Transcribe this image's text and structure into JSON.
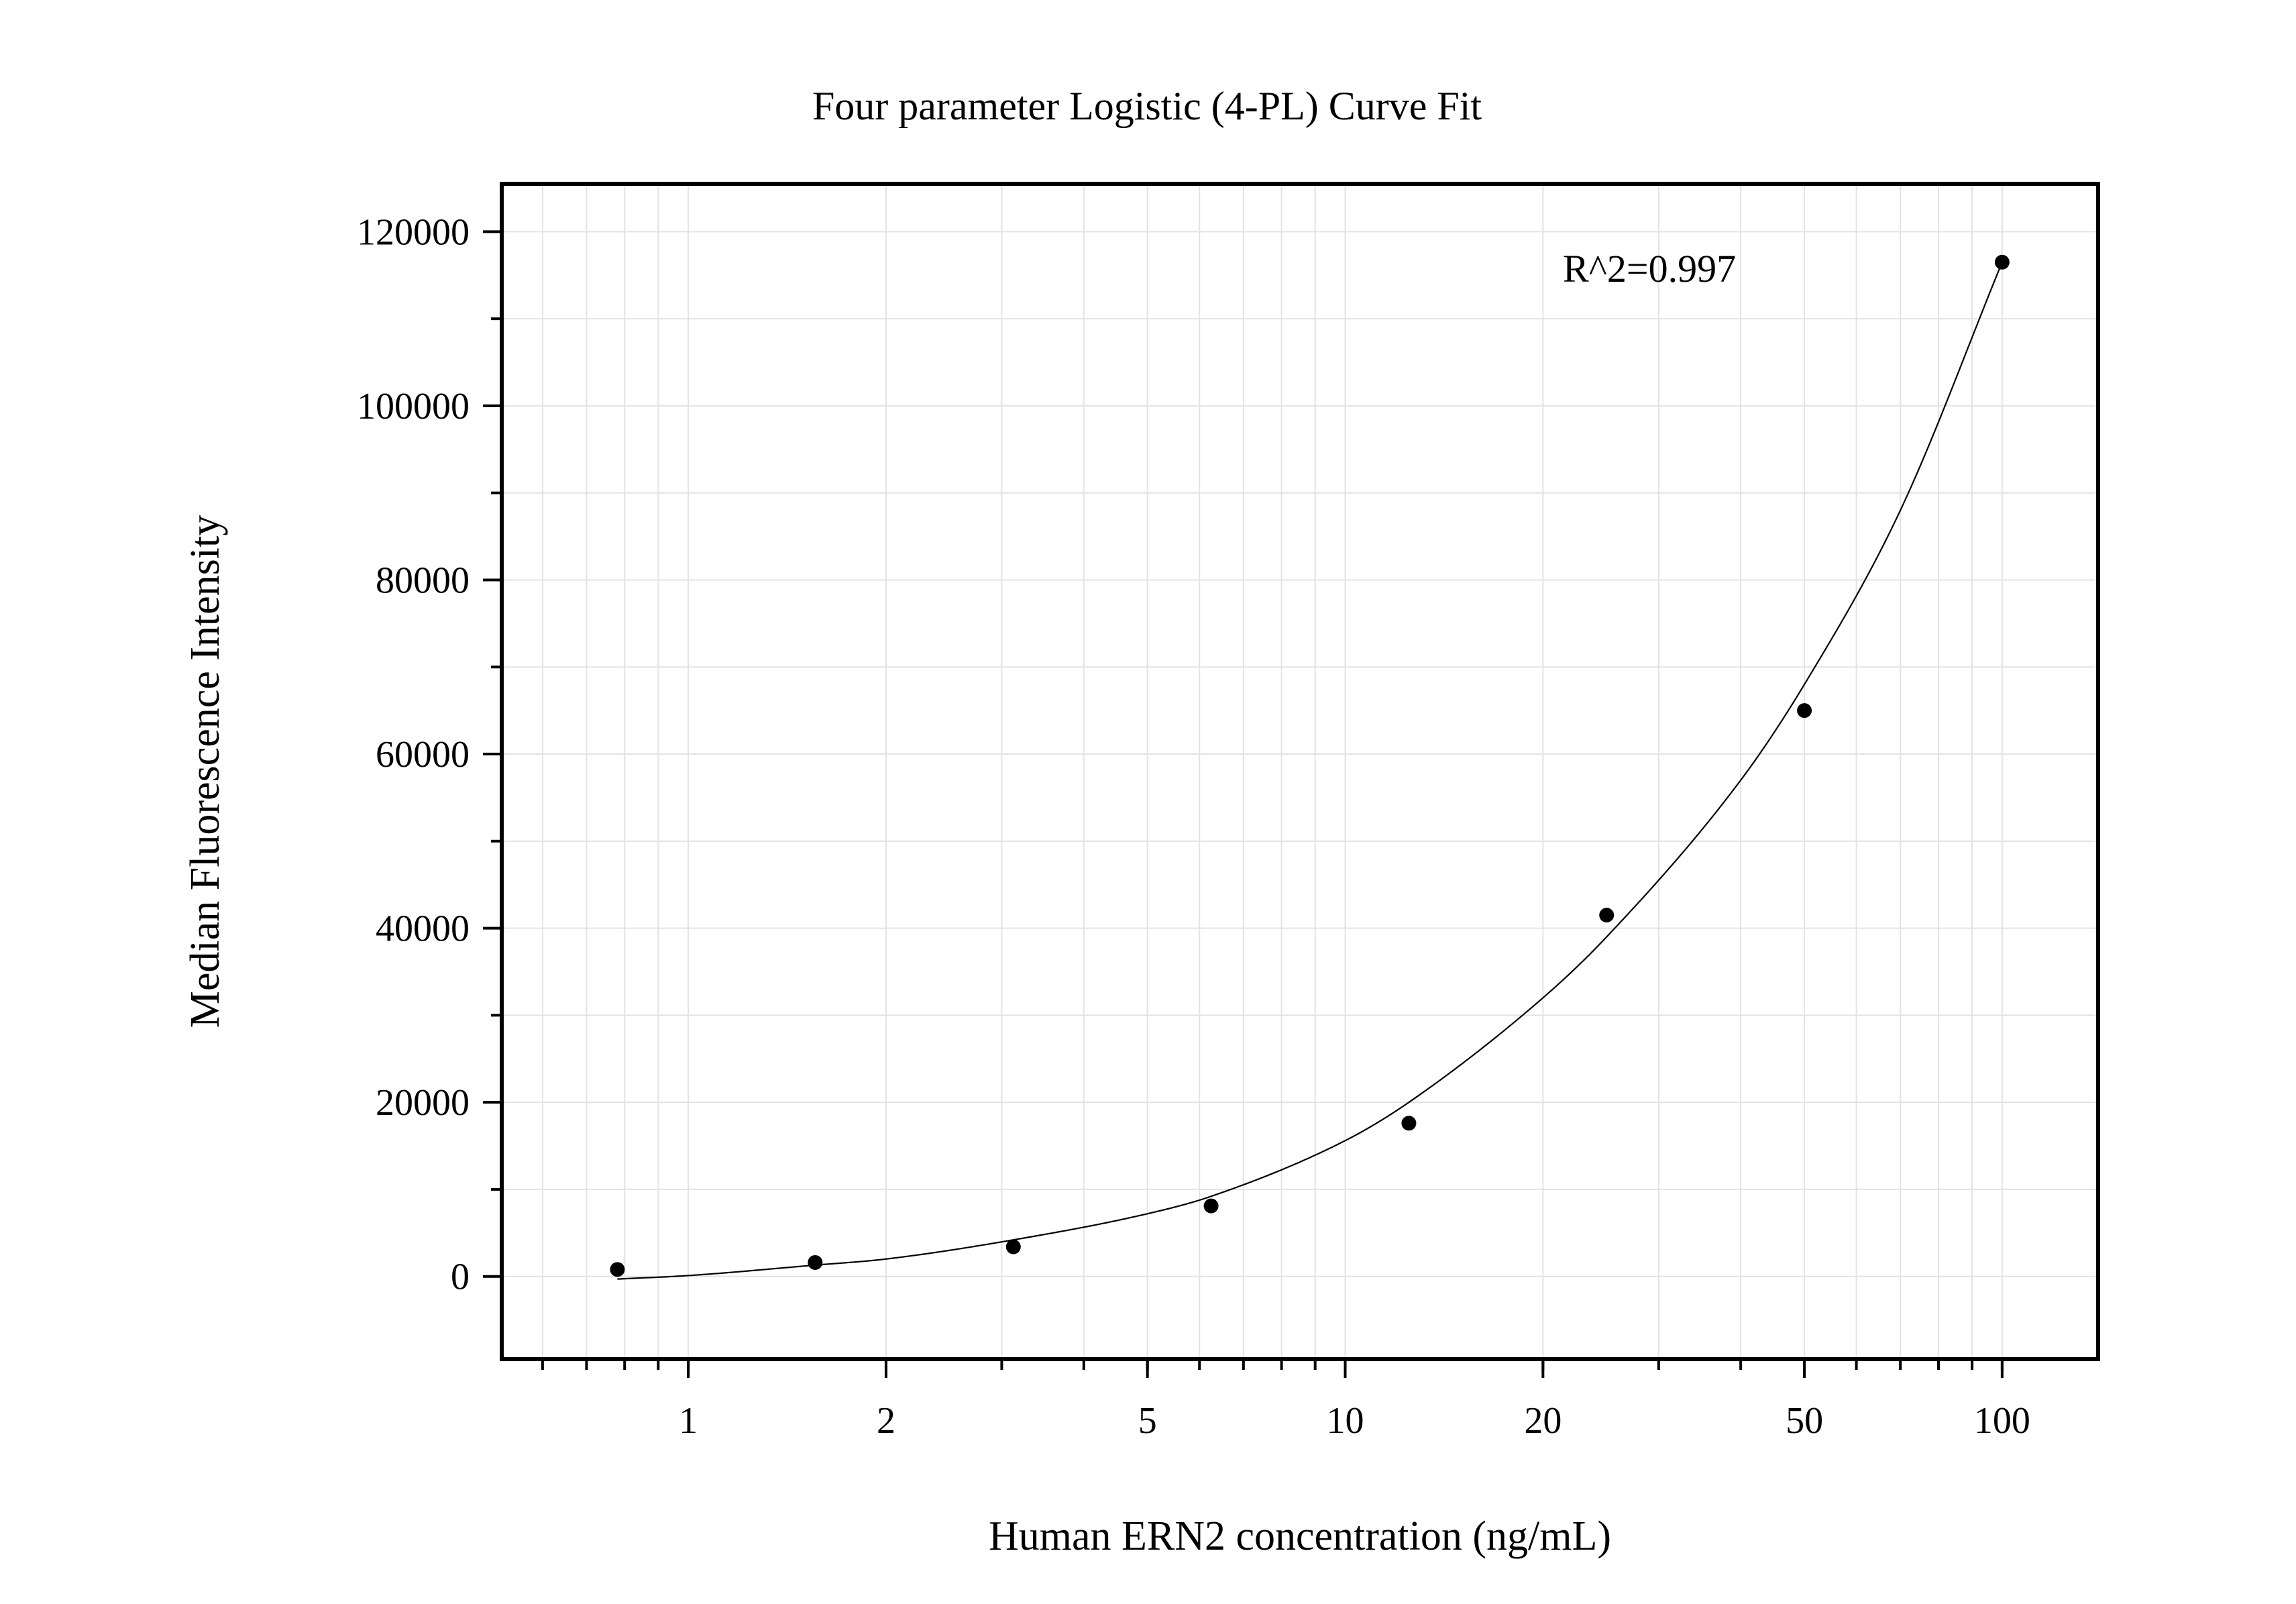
{
  "chart_data": {
    "type": "scatter",
    "title": "Four parameter Logistic (4-PL) Curve Fit",
    "xlabel": "Human ERN2 concentration (ng/mL)",
    "ylabel": "Median Fluorescence Intensity",
    "x_scale": "log",
    "xlim": [
      0.52,
      140
    ],
    "ylim": [
      -9500,
      125500
    ],
    "x_ticks": [
      1,
      2,
      5,
      10,
      20,
      50,
      100
    ],
    "x_tick_labels": [
      "1",
      "2",
      "5",
      "10",
      "20",
      "50",
      "100"
    ],
    "y_ticks": [
      0,
      20000,
      40000,
      60000,
      80000,
      100000,
      120000
    ],
    "y_tick_labels": [
      "0",
      "20000",
      "40000",
      "60000",
      "80000",
      "100000",
      "120000"
    ],
    "grid": true,
    "annotation": "R^2=0.997",
    "points": {
      "x": [
        0.78,
        1.56,
        3.125,
        6.25,
        12.5,
        25,
        50,
        100
      ],
      "y": [
        800,
        1600,
        3400,
        8100,
        17600,
        41500,
        65000,
        116500
      ]
    },
    "fit_curve": {
      "x": [
        0.78,
        1.0,
        1.56,
        2.0,
        3.125,
        5.0,
        6.25,
        10.0,
        12.5,
        20.0,
        25.0,
        40.0,
        50.0,
        70.0,
        100.0
      ],
      "y": [
        -300,
        100,
        1300,
        2000,
        4200,
        7200,
        9200,
        15600,
        20000,
        32000,
        39000,
        57000,
        68000,
        88000,
        116500
      ]
    }
  }
}
